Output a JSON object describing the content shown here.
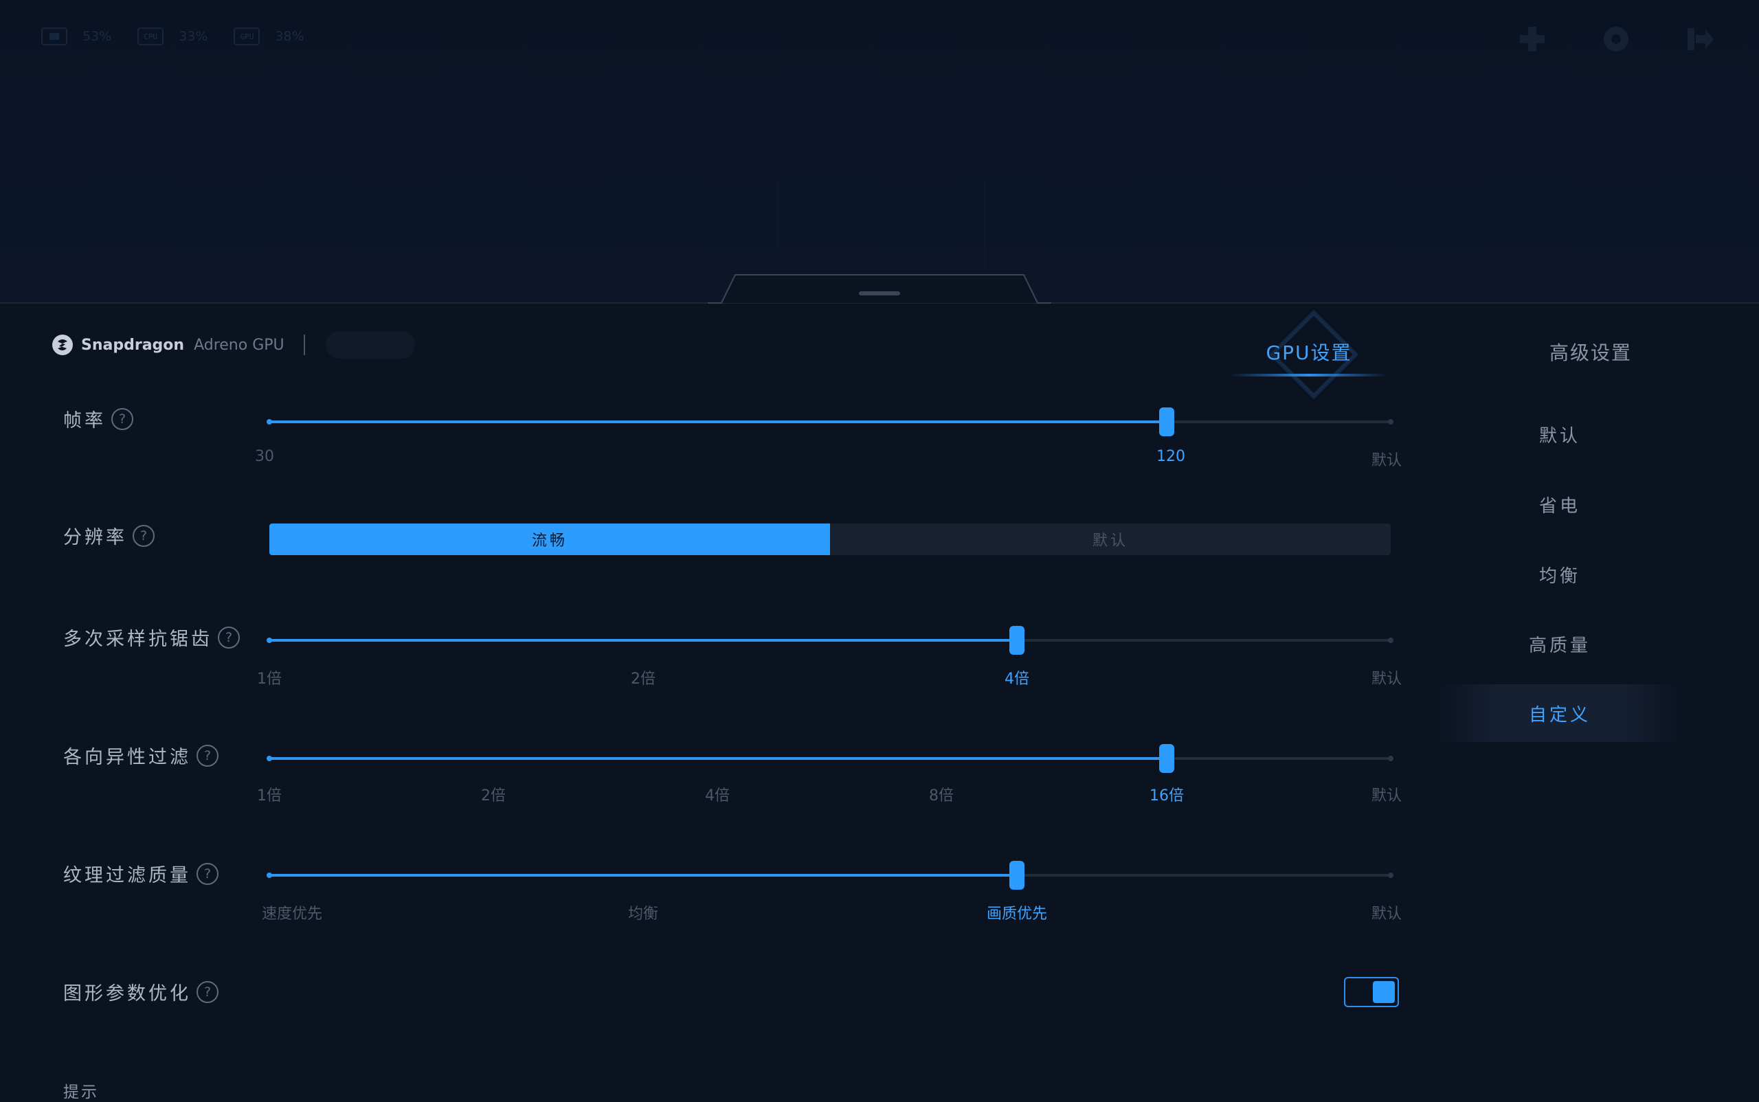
{
  "status_bar": {
    "items": [
      {
        "icon": "battery-icon",
        "chip": "",
        "value": "53%"
      },
      {
        "icon": "cpu-icon",
        "chip": "CPU",
        "value": "33%"
      },
      {
        "icon": "gpu-icon",
        "chip": "GPU",
        "value": "38%"
      }
    ],
    "actions": [
      "gamepad-icon",
      "settings-icon",
      "exit-icon"
    ]
  },
  "brand": {
    "name": "Snapdragon",
    "product": "Adreno GPU"
  },
  "tabs": {
    "gpu": "GPU设置",
    "advanced": "高级设置"
  },
  "settings": {
    "frame_rate": {
      "label": "帧率",
      "help": "?",
      "min": "30",
      "current": "120",
      "default": "默认",
      "value_fraction": 0.8
    },
    "resolution": {
      "label": "分辨率",
      "help": "?",
      "options": [
        "流畅",
        "默认"
      ],
      "selected": "流畅"
    },
    "msaa": {
      "label": "多次采样抗锯齿",
      "help": "?",
      "ticks": [
        "1倍",
        "2倍",
        "4倍",
        "默认"
      ],
      "selected": "4倍"
    },
    "anisotropic": {
      "label": "各向异性过滤",
      "help": "?",
      "ticks": [
        "1倍",
        "2倍",
        "4倍",
        "8倍",
        "16倍",
        "默认"
      ],
      "selected": "16倍"
    },
    "texture_quality": {
      "label": "纹理过滤质量",
      "help": "?",
      "ticks": [
        "速度优先",
        "均衡",
        "画质优先",
        "默认"
      ],
      "selected": "画质优先"
    },
    "graphics_opt": {
      "label": "图形参数优化",
      "help": "?",
      "enabled": true
    }
  },
  "presets": {
    "items": [
      "默认",
      "省电",
      "均衡",
      "高质量",
      "自定义"
    ],
    "selected": "自定义"
  },
  "hint": "提示",
  "colors": {
    "accent": "#2d9cff",
    "background": "#0b1220"
  }
}
